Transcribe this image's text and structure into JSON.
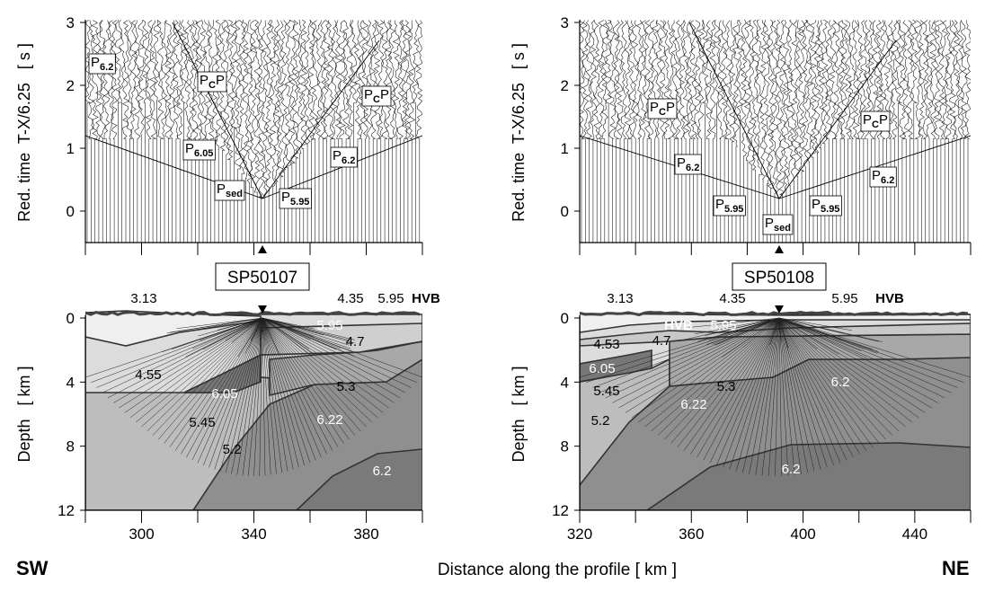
{
  "figure": {
    "xlabel": "Distance along the profile   [ km ]",
    "left_end": "SW",
    "right_end": "NE"
  },
  "chart_data": [
    {
      "type": "section",
      "shot": "SP50107",
      "ylabel": "Red. time  T-X/6.25   [ s ]",
      "xlim": [
        280,
        400
      ],
      "xticks": [
        300,
        340,
        380
      ],
      "xminor": [
        280,
        320,
        360,
        400
      ],
      "ylim": [
        -0.5,
        3
      ],
      "yticks": [
        0,
        1,
        2,
        3
      ],
      "phases": [
        {
          "p": "P",
          "sub": "6.2"
        },
        {
          "p": "P",
          "sub": "C",
          "post": "P"
        },
        {
          "p": "P",
          "sub": "C",
          "post": "P"
        },
        {
          "p": "P",
          "sub": "6.05"
        },
        {
          "p": "P",
          "sub": "6.2"
        },
        {
          "p": "P",
          "sub": "sed"
        },
        {
          "p": "P",
          "sub": "5.95"
        }
      ]
    },
    {
      "type": "section",
      "shot": "SP50108",
      "ylabel": "Red. time  T-X/6.25   [ s ]",
      "xlim": [
        320,
        460
      ],
      "xticks": [
        320,
        360,
        400,
        440
      ],
      "xminor": [
        340,
        380,
        420,
        460
      ],
      "ylim": [
        -0.5,
        3
      ],
      "yticks": [
        0,
        1,
        2,
        3
      ],
      "phases": [
        {
          "p": "P",
          "sub": "C",
          "post": "P"
        },
        {
          "p": "P",
          "sub": "C",
          "post": "P"
        },
        {
          "p": "P",
          "sub": "6.2"
        },
        {
          "p": "P",
          "sub": "6.2"
        },
        {
          "p": "P",
          "sub": "5.95"
        },
        {
          "p": "P",
          "sub": "sed"
        },
        {
          "p": "P",
          "sub": "5.95"
        }
      ]
    },
    {
      "type": "model",
      "ylabel": "Depth   [ km ]",
      "xlim": [
        280,
        400
      ],
      "xticks": [
        300,
        340,
        380
      ],
      "xminor": [
        280,
        320,
        360,
        400
      ],
      "ylim": [
        12,
        0
      ],
      "yticks": [
        0,
        4,
        8,
        12
      ],
      "labels": [
        "3.13",
        "4.35",
        "5.95",
        "HVB",
        "5.95",
        "4.7",
        "5.3",
        "4.55",
        "6.05",
        "5.45",
        "5.2",
        "6.22",
        "6.2"
      ]
    },
    {
      "type": "model",
      "ylabel": "Depth   [ km ]",
      "xlim": [
        320,
        460
      ],
      "xticks": [
        320,
        360,
        400,
        440
      ],
      "xminor": [
        340,
        380,
        420,
        460
      ],
      "ylim": [
        12,
        0
      ],
      "yticks": [
        0,
        4,
        8,
        12
      ],
      "labels": [
        "3.13",
        "4.35",
        "5.95",
        "HVB",
        "HVB",
        "5.95",
        "4.53",
        "4.7",
        "5.3",
        "6.05",
        "5.45",
        "5.2",
        "6.22",
        "6.2",
        "6.2"
      ]
    }
  ]
}
